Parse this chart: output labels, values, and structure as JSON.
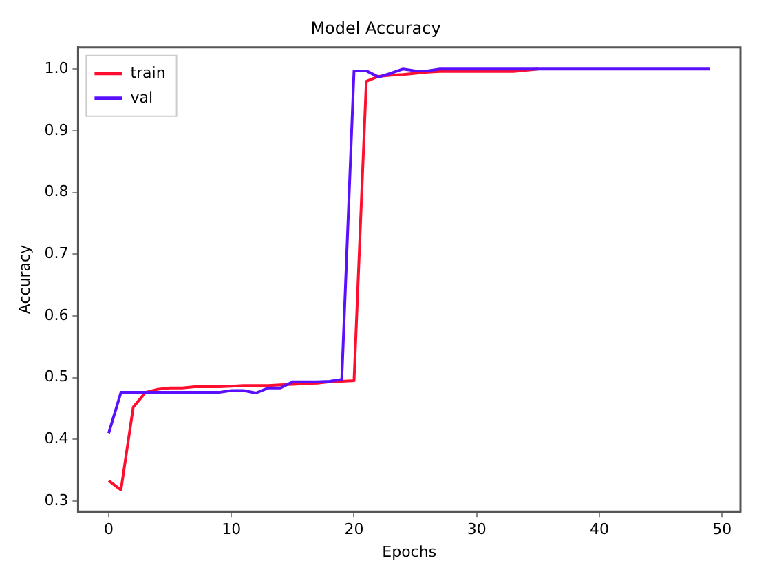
{
  "chart_data": {
    "type": "line",
    "title": "Model Accuracy",
    "xlabel": "Epochs",
    "ylabel": "Accuracy",
    "x": [
      0,
      1,
      2,
      3,
      4,
      5,
      6,
      7,
      8,
      9,
      10,
      11,
      12,
      13,
      14,
      15,
      16,
      17,
      18,
      19,
      20,
      21,
      22,
      23,
      24,
      25,
      26,
      27,
      28,
      29,
      30,
      31,
      32,
      33,
      34,
      35,
      36,
      37,
      38,
      39,
      40,
      41,
      42,
      43,
      44,
      45,
      46,
      47,
      48,
      49
    ],
    "series": [
      {
        "name": "train",
        "color": "#ff0f2f",
        "values": [
          0.333,
          0.318,
          0.452,
          0.476,
          0.481,
          0.483,
          0.483,
          0.485,
          0.485,
          0.485,
          0.486,
          0.487,
          0.487,
          0.487,
          0.488,
          0.489,
          0.49,
          0.491,
          0.493,
          0.494,
          0.495,
          0.98,
          0.988,
          0.99,
          0.991,
          0.993,
          0.995,
          0.996,
          0.996,
          0.996,
          0.996,
          0.996,
          0.996,
          0.996,
          0.998,
          1.0,
          null,
          null,
          null,
          null,
          null,
          null,
          null,
          null,
          null,
          null,
          null,
          null,
          null,
          null
        ]
      },
      {
        "name": "val",
        "color": "#5a0fff",
        "values": [
          0.41,
          0.476,
          0.476,
          0.476,
          0.476,
          0.476,
          0.476,
          0.476,
          0.476,
          0.476,
          0.479,
          0.479,
          0.475,
          0.483,
          0.483,
          0.493,
          0.493,
          0.493,
          0.494,
          0.497,
          0.997,
          0.997,
          0.987,
          0.993,
          1.0,
          0.997,
          0.997,
          1.0,
          1.0,
          1.0,
          1.0,
          1.0,
          1.0,
          1.0,
          1.0,
          1.0,
          1.0,
          1.0,
          1.0,
          1.0,
          1.0,
          1.0,
          1.0,
          1.0,
          1.0,
          1.0,
          1.0,
          1.0,
          1.0,
          1.0
        ]
      }
    ],
    "xlim": [
      -2.5,
      51.5
    ],
    "xticks": [
      0,
      10,
      20,
      30,
      40,
      50
    ],
    "ylim": [
      0.283,
      1.035
    ],
    "yticks": [
      0.3,
      0.4,
      0.5,
      0.6,
      0.7,
      0.8,
      0.9,
      {
        "value": 1,
        "label": "1.0"
      }
    ],
    "grid": false,
    "legend": "top left",
    "marker": "none",
    "line_style": "solid"
  }
}
